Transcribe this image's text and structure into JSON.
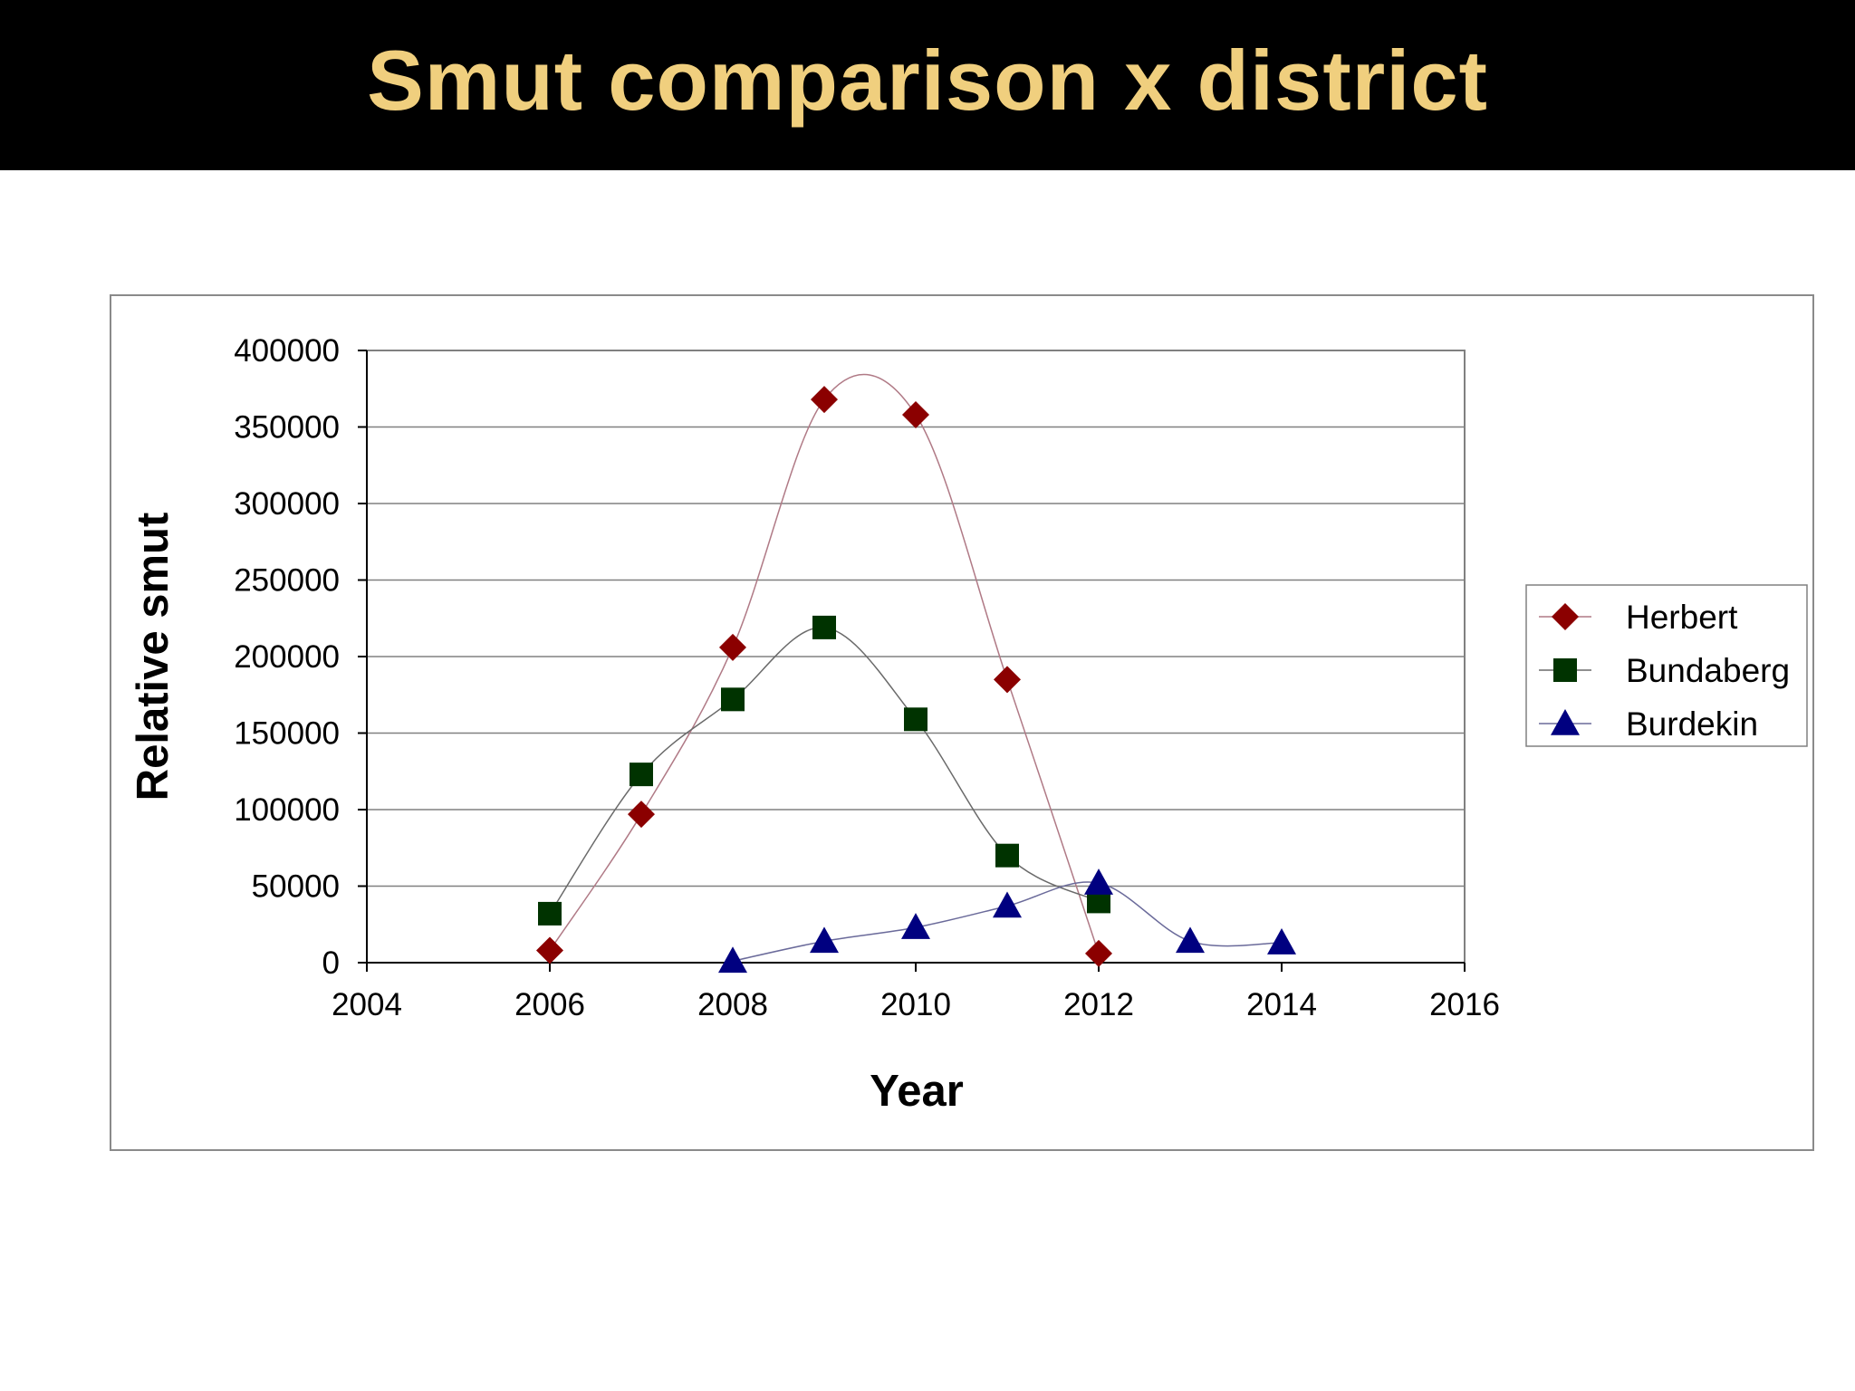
{
  "slide": {
    "title": "Smut comparison x district"
  },
  "colors": {
    "title_bar": "#000000",
    "title_text": "#f0cf7e",
    "herbert": "#8b0000",
    "bundaberg": "#003300",
    "burdekin": "#000080",
    "herbert_line": "#b07a86",
    "bundaberg_line": "#6a6a6a",
    "burdekin_line": "#6a6a9a"
  },
  "chart_data": {
    "type": "scatter",
    "title": "",
    "xlabel": "Year",
    "ylabel": "Relative smut",
    "xlim": [
      2004,
      2016
    ],
    "ylim": [
      0,
      400000
    ],
    "x_ticks": [
      "2004",
      "2006",
      "2008",
      "2010",
      "2012",
      "2014",
      "2016"
    ],
    "y_ticks": [
      "0",
      "50000",
      "100000",
      "150000",
      "200000",
      "250000",
      "300000",
      "350000",
      "400000"
    ],
    "grid": "horizontal",
    "smoothed_lines": true,
    "legend_position": "right",
    "series": [
      {
        "name": "Herbert",
        "marker": "diamond",
        "x": [
          2006,
          2007,
          2008,
          2009,
          2010,
          2011,
          2012
        ],
        "y": [
          8000,
          97000,
          206000,
          368000,
          358000,
          185000,
          6000
        ]
      },
      {
        "name": "Bundaberg",
        "marker": "square",
        "x": [
          2006,
          2007,
          2008,
          2009,
          2010,
          2011,
          2012
        ],
        "y": [
          32000,
          123000,
          172000,
          219000,
          159000,
          70000,
          40000
        ]
      },
      {
        "name": "Burdekin",
        "marker": "triangle",
        "x": [
          2008,
          2009,
          2010,
          2011,
          2012,
          2013,
          2014
        ],
        "y": [
          1000,
          14000,
          23000,
          37000,
          52000,
          14000,
          13000
        ]
      }
    ]
  }
}
